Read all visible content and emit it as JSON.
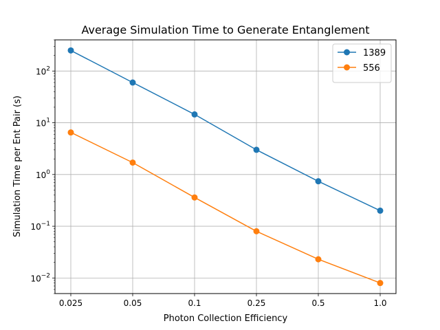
{
  "chart_data": {
    "type": "line",
    "title": "Average Simulation Time to Generate Entanglement",
    "xlabel": "Photon Collection Efficiency",
    "ylabel": "Simulation Time per Ent Pair (s)",
    "categories": [
      "0.025",
      "0.05",
      "0.1",
      "0.25",
      "0.5",
      "1.0"
    ],
    "y_scale": "log",
    "ylim": [
      0.005,
      400
    ],
    "y_ticks": [
      {
        "value": 0.01,
        "base": "10",
        "exp": "−2"
      },
      {
        "value": 0.1,
        "base": "10",
        "exp": "−1"
      },
      {
        "value": 1,
        "base": "10",
        "exp": "0"
      },
      {
        "value": 10,
        "base": "10",
        "exp": "1"
      },
      {
        "value": 100,
        "base": "10",
        "exp": "2"
      }
    ],
    "grid": true,
    "legend_position": "top-right",
    "series": [
      {
        "name": "1389",
        "color": "#1f77b4",
        "values": [
          250,
          60,
          14.5,
          3.0,
          0.74,
          0.2
        ]
      },
      {
        "name": "556",
        "color": "#ff7f0e",
        "values": [
          6.5,
          1.7,
          0.36,
          0.08,
          0.023,
          0.008
        ]
      }
    ]
  }
}
